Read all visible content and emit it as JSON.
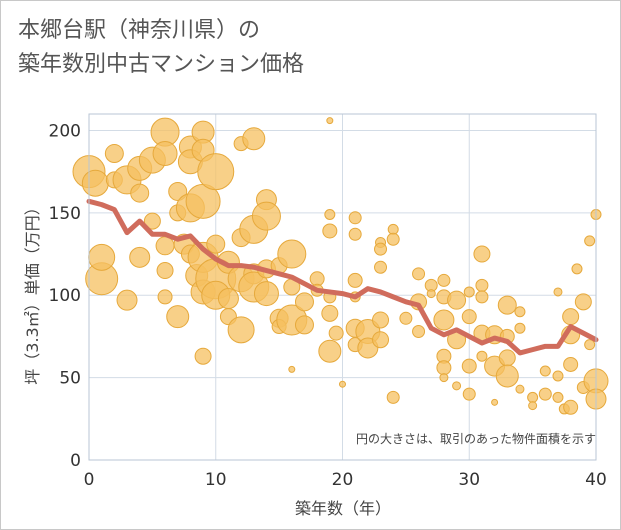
{
  "title_line1": "本郷台駅（神奈川県）の",
  "title_line2": "築年数別中古マンション価格",
  "colors": {
    "bubble_fill": "#f5c060",
    "bubble_stroke": "#e6a93c",
    "line": "#d06c5c",
    "grid": "#d3dce6",
    "plot_border": "#b9c6d4"
  },
  "chart_data": {
    "type": "scatter",
    "xlabel": "築年数（年）",
    "ylabel": "坪（3.3㎡）単価（万円）",
    "xlim": [
      0,
      40
    ],
    "ylim": [
      0,
      210
    ],
    "xticks": [
      0,
      10,
      20,
      30,
      40
    ],
    "yticks": [
      0,
      50,
      100,
      150,
      200
    ],
    "grid": true,
    "note": "円の大きさは、取引のあった物件面積を示す",
    "average_line": {
      "x": [
        0,
        1,
        2,
        3,
        4,
        5,
        6,
        7,
        8,
        9,
        10,
        11,
        12,
        13,
        14,
        15,
        16,
        17,
        18,
        19,
        20,
        21,
        22,
        23,
        24,
        25,
        26,
        27,
        28,
        29,
        30,
        31,
        32,
        33,
        34,
        35,
        36,
        37,
        38,
        39,
        40
      ],
      "y": [
        157,
        155,
        152,
        138,
        145,
        137,
        137,
        134,
        136,
        128,
        122,
        118,
        118,
        117,
        115,
        113,
        111,
        107,
        103,
        102,
        101,
        99,
        104,
        102,
        99,
        96,
        94,
        80,
        76,
        79,
        75,
        71,
        74,
        72,
        65,
        67,
        69,
        69,
        81,
        77,
        73
      ]
    },
    "bubbles": [
      {
        "x": 0,
        "y": 175,
        "s": 16
      },
      {
        "x": 0.5,
        "y": 168,
        "s": 13
      },
      {
        "x": 1,
        "y": 110,
        "s": 16
      },
      {
        "x": 1,
        "y": 123,
        "s": 13
      },
      {
        "x": 2,
        "y": 186,
        "s": 9
      },
      {
        "x": 2,
        "y": 170,
        "s": 8
      },
      {
        "x": 3,
        "y": 170,
        "s": 14
      },
      {
        "x": 3,
        "y": 97,
        "s": 10
      },
      {
        "x": 4,
        "y": 177,
        "s": 12
      },
      {
        "x": 4,
        "y": 162,
        "s": 9
      },
      {
        "x": 4,
        "y": 123,
        "s": 10
      },
      {
        "x": 5,
        "y": 182,
        "s": 13
      },
      {
        "x": 5,
        "y": 145,
        "s": 8
      },
      {
        "x": 6,
        "y": 199,
        "s": 14
      },
      {
        "x": 6,
        "y": 186,
        "s": 12
      },
      {
        "x": 6,
        "y": 130,
        "s": 9
      },
      {
        "x": 6,
        "y": 115,
        "s": 8
      },
      {
        "x": 6,
        "y": 99,
        "s": 7
      },
      {
        "x": 7,
        "y": 163,
        "s": 9
      },
      {
        "x": 7,
        "y": 150,
        "s": 8
      },
      {
        "x": 7,
        "y": 87,
        "s": 11
      },
      {
        "x": 7.5,
        "y": 131,
        "s": 10
      },
      {
        "x": 8,
        "y": 190,
        "s": 11
      },
      {
        "x": 8,
        "y": 181,
        "s": 12
      },
      {
        "x": 8,
        "y": 153,
        "s": 14
      },
      {
        "x": 8,
        "y": 125,
        "s": 9
      },
      {
        "x": 8.5,
        "y": 112,
        "s": 11
      },
      {
        "x": 9,
        "y": 199,
        "s": 11
      },
      {
        "x": 9,
        "y": 188,
        "s": 11
      },
      {
        "x": 9,
        "y": 157,
        "s": 17
      },
      {
        "x": 9,
        "y": 123,
        "s": 15
      },
      {
        "x": 9,
        "y": 102,
        "s": 12
      },
      {
        "x": 9,
        "y": 63,
        "s": 8
      },
      {
        "x": 10,
        "y": 175,
        "s": 18
      },
      {
        "x": 10,
        "y": 131,
        "s": 9
      },
      {
        "x": 10,
        "y": 110,
        "s": 20
      },
      {
        "x": 10,
        "y": 100,
        "s": 14
      },
      {
        "x": 11,
        "y": 120,
        "s": 11
      },
      {
        "x": 11,
        "y": 98,
        "s": 10
      },
      {
        "x": 11,
        "y": 87,
        "s": 8
      },
      {
        "x": 12,
        "y": 192,
        "s": 7
      },
      {
        "x": 12,
        "y": 135,
        "s": 9
      },
      {
        "x": 12,
        "y": 110,
        "s": 13
      },
      {
        "x": 12,
        "y": 79,
        "s": 13
      },
      {
        "x": 13,
        "y": 195,
        "s": 11
      },
      {
        "x": 13,
        "y": 140,
        "s": 14
      },
      {
        "x": 13,
        "y": 113,
        "s": 10
      },
      {
        "x": 13,
        "y": 105,
        "s": 15
      },
      {
        "x": 14,
        "y": 158,
        "s": 10
      },
      {
        "x": 14,
        "y": 148,
        "s": 14
      },
      {
        "x": 14,
        "y": 116,
        "s": 9
      },
      {
        "x": 14,
        "y": 101,
        "s": 12
      },
      {
        "x": 15,
        "y": 118,
        "s": 8
      },
      {
        "x": 15,
        "y": 86,
        "s": 9
      },
      {
        "x": 15,
        "y": 81,
        "s": 7
      },
      {
        "x": 16,
        "y": 125,
        "s": 14
      },
      {
        "x": 16,
        "y": 105,
        "s": 8
      },
      {
        "x": 16,
        "y": 85,
        "s": 15
      },
      {
        "x": 16,
        "y": 55,
        "s": 3
      },
      {
        "x": 17,
        "y": 96,
        "s": 9
      },
      {
        "x": 17,
        "y": 82,
        "s": 9
      },
      {
        "x": 18,
        "y": 110,
        "s": 7
      },
      {
        "x": 18,
        "y": 103,
        "s": 6
      },
      {
        "x": 19,
        "y": 206,
        "s": 3
      },
      {
        "x": 19,
        "y": 149,
        "s": 5
      },
      {
        "x": 19,
        "y": 139,
        "s": 7
      },
      {
        "x": 19,
        "y": 99,
        "s": 6
      },
      {
        "x": 19,
        "y": 89,
        "s": 8
      },
      {
        "x": 19,
        "y": 66,
        "s": 11
      },
      {
        "x": 19.5,
        "y": 77,
        "s": 7
      },
      {
        "x": 20,
        "y": 46,
        "s": 3
      },
      {
        "x": 21,
        "y": 147,
        "s": 6
      },
      {
        "x": 21,
        "y": 137,
        "s": 6
      },
      {
        "x": 21,
        "y": 109,
        "s": 7
      },
      {
        "x": 21,
        "y": 99,
        "s": 5
      },
      {
        "x": 21,
        "y": 80,
        "s": 9
      },
      {
        "x": 21,
        "y": 70,
        "s": 7
      },
      {
        "x": 22,
        "y": 78,
        "s": 12
      },
      {
        "x": 22,
        "y": 68,
        "s": 10
      },
      {
        "x": 23,
        "y": 132,
        "s": 5
      },
      {
        "x": 23,
        "y": 128,
        "s": 6
      },
      {
        "x": 23,
        "y": 117,
        "s": 6
      },
      {
        "x": 23,
        "y": 85,
        "s": 8
      },
      {
        "x": 23,
        "y": 73,
        "s": 8
      },
      {
        "x": 24,
        "y": 140,
        "s": 5
      },
      {
        "x": 24,
        "y": 134,
        "s": 6
      },
      {
        "x": 24,
        "y": 38,
        "s": 6
      },
      {
        "x": 25,
        "y": 86,
        "s": 6
      },
      {
        "x": 26,
        "y": 113,
        "s": 6
      },
      {
        "x": 26,
        "y": 96,
        "s": 8
      },
      {
        "x": 26,
        "y": 78,
        "s": 6
      },
      {
        "x": 27,
        "y": 106,
        "s": 6
      },
      {
        "x": 27,
        "y": 101,
        "s": 4
      },
      {
        "x": 28,
        "y": 109,
        "s": 6
      },
      {
        "x": 28,
        "y": 99,
        "s": 7
      },
      {
        "x": 28,
        "y": 85,
        "s": 10
      },
      {
        "x": 28,
        "y": 63,
        "s": 7
      },
      {
        "x": 28,
        "y": 56,
        "s": 7
      },
      {
        "x": 28,
        "y": 50,
        "s": 4
      },
      {
        "x": 29,
        "y": 97,
        "s": 9
      },
      {
        "x": 29,
        "y": 73,
        "s": 9
      },
      {
        "x": 29,
        "y": 45,
        "s": 4
      },
      {
        "x": 30,
        "y": 102,
        "s": 5
      },
      {
        "x": 30,
        "y": 87,
        "s": 7
      },
      {
        "x": 30,
        "y": 57,
        "s": 7
      },
      {
        "x": 30,
        "y": 40,
        "s": 6
      },
      {
        "x": 31,
        "y": 125,
        "s": 8
      },
      {
        "x": 31,
        "y": 106,
        "s": 6
      },
      {
        "x": 31,
        "y": 99,
        "s": 6
      },
      {
        "x": 31,
        "y": 77,
        "s": 8
      },
      {
        "x": 31,
        "y": 63,
        "s": 5
      },
      {
        "x": 32,
        "y": 76,
        "s": 9
      },
      {
        "x": 32,
        "y": 57,
        "s": 10
      },
      {
        "x": 32,
        "y": 35,
        "s": 3
      },
      {
        "x": 33,
        "y": 94,
        "s": 9
      },
      {
        "x": 33,
        "y": 75,
        "s": 7
      },
      {
        "x": 33,
        "y": 62,
        "s": 8
      },
      {
        "x": 33,
        "y": 51,
        "s": 11
      },
      {
        "x": 34,
        "y": 90,
        "s": 5
      },
      {
        "x": 34,
        "y": 80,
        "s": 5
      },
      {
        "x": 34,
        "y": 43,
        "s": 4
      },
      {
        "x": 35,
        "y": 38,
        "s": 5
      },
      {
        "x": 35,
        "y": 33,
        "s": 4
      },
      {
        "x": 36,
        "y": 54,
        "s": 5
      },
      {
        "x": 36,
        "y": 40,
        "s": 6
      },
      {
        "x": 37,
        "y": 102,
        "s": 4
      },
      {
        "x": 37,
        "y": 51,
        "s": 5
      },
      {
        "x": 37,
        "y": 38,
        "s": 5
      },
      {
        "x": 37.5,
        "y": 31,
        "s": 5
      },
      {
        "x": 38,
        "y": 87,
        "s": 8
      },
      {
        "x": 38,
        "y": 76,
        "s": 9
      },
      {
        "x": 38,
        "y": 58,
        "s": 7
      },
      {
        "x": 38,
        "y": 32,
        "s": 7
      },
      {
        "x": 38.5,
        "y": 116,
        "s": 5
      },
      {
        "x": 39,
        "y": 96,
        "s": 8
      },
      {
        "x": 39,
        "y": 44,
        "s": 6
      },
      {
        "x": 39.5,
        "y": 133,
        "s": 5
      },
      {
        "x": 39.5,
        "y": 70,
        "s": 5
      },
      {
        "x": 40,
        "y": 149,
        "s": 5
      },
      {
        "x": 40,
        "y": 48,
        "s": 12
      },
      {
        "x": 40,
        "y": 37,
        "s": 10
      }
    ]
  }
}
